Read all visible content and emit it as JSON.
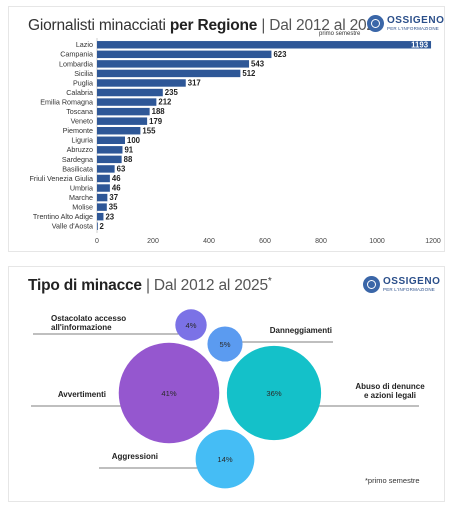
{
  "brand": {
    "name": "OSSIGENO",
    "tagline": "PER L'INFORMAZIONE",
    "accent": "#2e5797"
  },
  "chart1": {
    "title_normal": "Giornalisti minacciati ",
    "title_bold": "per Regione",
    "title_suffix": " | Dal 2012 al 2025",
    "note": "primo semestre"
  },
  "chart2": {
    "title_bold": "Tipo di minacce",
    "title_suffix": " | Dal 2012 al 2025",
    "title_mark": "*",
    "footnote": "*primo semestre"
  },
  "chart_data": [
    {
      "type": "bar",
      "orientation": "horizontal",
      "title": "Giornalisti minacciati per Regione | Dal 2012 al 2025",
      "categories": [
        "Lazio",
        "Campania",
        "Lombardia",
        "Sicilia",
        "Puglia",
        "Calabria",
        "Emilia Romagna",
        "Toscana",
        "Veneto",
        "Piemonte",
        "Liguria",
        "Abruzzo",
        "Sardegna",
        "Basilicata",
        "Friuli Venezia Giulia",
        "Umbria",
        "Marche",
        "Molise",
        "Trentino Alto Adige",
        "Valle d'Aosta"
      ],
      "values": [
        1193,
        623,
        543,
        512,
        317,
        235,
        212,
        188,
        179,
        155,
        100,
        91,
        88,
        63,
        46,
        46,
        37,
        35,
        23,
        2
      ],
      "xlim": [
        0,
        1200
      ],
      "xticks": [
        0,
        200,
        400,
        600,
        800,
        1000,
        1200
      ],
      "bar_color": "#2e5797",
      "grid": false
    },
    {
      "type": "bubble",
      "title": "Tipo di minacce | Dal 2012 al 2025*",
      "categories": [
        "Ostacolato accesso all'informazione",
        "Danneggiamenti",
        "Avvertimenti",
        "Abuso di denunce e azioni legali",
        "Aggressioni"
      ],
      "display_labels": [
        [
          "Ostacolato accesso",
          "all'informazione"
        ],
        [
          "Danneggiamenti"
        ],
        [
          "Avvertimenti"
        ],
        [
          "Abuso di denunce",
          "e azioni legali"
        ],
        [
          "Aggressioni"
        ]
      ],
      "values": [
        4,
        5,
        41,
        36,
        14
      ],
      "value_labels": [
        "4%",
        "5%",
        "41%",
        "36%",
        "14%"
      ],
      "colors": [
        "#7b72e6",
        "#5b9bf0",
        "#9557cf",
        "#14c1c9",
        "#45bdf5"
      ],
      "unit": "%"
    }
  ]
}
